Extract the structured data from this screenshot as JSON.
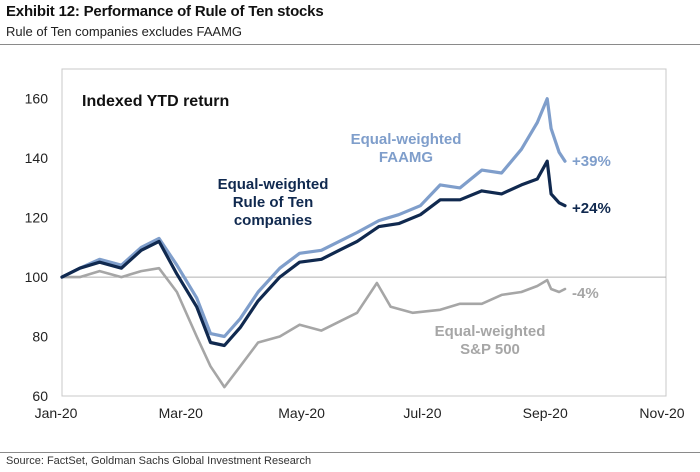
{
  "header": {
    "title": "Exhibit 12: Performance of Rule of Ten stocks",
    "subtitle": "Rule of Ten companies excludes FAAMG"
  },
  "footer": {
    "source": "Source: FactSet, Goldman Sachs Global Investment Research"
  },
  "chart_data": {
    "type": "line",
    "title": "Indexed YTD return",
    "xlabel": "",
    "ylabel": "",
    "x_ticks": [
      "Jan-20",
      "Mar-20",
      "May-20",
      "Jul-20",
      "Sep-20",
      "Nov-20"
    ],
    "x_range": [
      "2020-01-01",
      "2020-11-01"
    ],
    "y_ticks": [
      60,
      80,
      100,
      120,
      140,
      160
    ],
    "ylim": [
      60,
      170
    ],
    "reference_line": 100,
    "grid": false,
    "series": [
      {
        "name": "Equal-weighted FAAMG",
        "label_lines": [
          "Equal-weighted",
          "FAAMG"
        ],
        "end_label": "+39%",
        "color": "#7f9ecb",
        "points": [
          [
            "2020-01-01",
            100
          ],
          [
            "2020-01-10",
            103
          ],
          [
            "2020-01-20",
            106
          ],
          [
            "2020-01-31",
            104
          ],
          [
            "2020-02-10",
            110
          ],
          [
            "2020-02-19",
            113
          ],
          [
            "2020-02-28",
            104
          ],
          [
            "2020-03-09",
            93
          ],
          [
            "2020-03-16",
            81
          ],
          [
            "2020-03-23",
            80
          ],
          [
            "2020-03-31",
            86
          ],
          [
            "2020-04-09",
            95
          ],
          [
            "2020-04-20",
            103
          ],
          [
            "2020-04-30",
            108
          ],
          [
            "2020-05-11",
            109
          ],
          [
            "2020-05-20",
            112
          ],
          [
            "2020-05-29",
            115
          ],
          [
            "2020-06-09",
            119
          ],
          [
            "2020-06-19",
            121
          ],
          [
            "2020-06-30",
            124
          ],
          [
            "2020-07-10",
            131
          ],
          [
            "2020-07-20",
            130
          ],
          [
            "2020-07-31",
            136
          ],
          [
            "2020-08-10",
            135
          ],
          [
            "2020-08-20",
            143
          ],
          [
            "2020-08-28",
            152
          ],
          [
            "2020-09-02",
            160
          ],
          [
            "2020-09-04",
            150
          ],
          [
            "2020-09-08",
            142
          ],
          [
            "2020-09-11",
            139
          ]
        ]
      },
      {
        "name": "Equal-weighted Rule of Ten companies",
        "label_lines": [
          "Equal-weighted",
          "Rule of Ten",
          "companies"
        ],
        "end_label": "+24%",
        "color": "#10294f",
        "points": [
          [
            "2020-01-01",
            100
          ],
          [
            "2020-01-10",
            103
          ],
          [
            "2020-01-20",
            105
          ],
          [
            "2020-01-31",
            103
          ],
          [
            "2020-02-10",
            109
          ],
          [
            "2020-02-19",
            112
          ],
          [
            "2020-02-28",
            101
          ],
          [
            "2020-03-09",
            90
          ],
          [
            "2020-03-16",
            78
          ],
          [
            "2020-03-23",
            77
          ],
          [
            "2020-03-31",
            83
          ],
          [
            "2020-04-09",
            92
          ],
          [
            "2020-04-20",
            100
          ],
          [
            "2020-04-30",
            105
          ],
          [
            "2020-05-11",
            106
          ],
          [
            "2020-05-20",
            109
          ],
          [
            "2020-05-29",
            112
          ],
          [
            "2020-06-09",
            117
          ],
          [
            "2020-06-19",
            118
          ],
          [
            "2020-06-30",
            121
          ],
          [
            "2020-07-10",
            126
          ],
          [
            "2020-07-20",
            126
          ],
          [
            "2020-07-31",
            129
          ],
          [
            "2020-08-10",
            128
          ],
          [
            "2020-08-20",
            131
          ],
          [
            "2020-08-28",
            133
          ],
          [
            "2020-09-02",
            139
          ],
          [
            "2020-09-04",
            128
          ],
          [
            "2020-09-08",
            125
          ],
          [
            "2020-09-11",
            124
          ]
        ]
      },
      {
        "name": "Equal-weighted S&P 500",
        "label_lines": [
          "Equal-weighted",
          "S&P 500"
        ],
        "end_label": "-4%",
        "color": "#a6a6a6",
        "points": [
          [
            "2020-01-01",
            100
          ],
          [
            "2020-01-10",
            100
          ],
          [
            "2020-01-20",
            102
          ],
          [
            "2020-01-31",
            100
          ],
          [
            "2020-02-10",
            102
          ],
          [
            "2020-02-19",
            103
          ],
          [
            "2020-02-28",
            95
          ],
          [
            "2020-03-09",
            80
          ],
          [
            "2020-03-16",
            70
          ],
          [
            "2020-03-23",
            63
          ],
          [
            "2020-03-31",
            70
          ],
          [
            "2020-04-09",
            78
          ],
          [
            "2020-04-20",
            80
          ],
          [
            "2020-04-30",
            84
          ],
          [
            "2020-05-11",
            82
          ],
          [
            "2020-05-20",
            85
          ],
          [
            "2020-05-29",
            88
          ],
          [
            "2020-06-08",
            98
          ],
          [
            "2020-06-15",
            90
          ],
          [
            "2020-06-26",
            88
          ],
          [
            "2020-07-10",
            89
          ],
          [
            "2020-07-20",
            91
          ],
          [
            "2020-07-31",
            91
          ],
          [
            "2020-08-10",
            94
          ],
          [
            "2020-08-20",
            95
          ],
          [
            "2020-08-28",
            97
          ],
          [
            "2020-09-02",
            99
          ],
          [
            "2020-09-04",
            96
          ],
          [
            "2020-09-08",
            95
          ],
          [
            "2020-09-11",
            96
          ]
        ]
      }
    ]
  }
}
